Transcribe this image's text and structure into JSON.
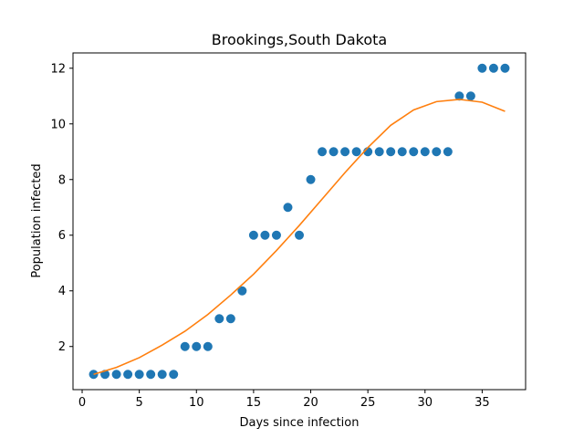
{
  "chart_data": {
    "type": "scatter",
    "title": "Brookings,South Dakota",
    "xlabel": "Days since infection",
    "ylabel": "Population infected",
    "xlim": [
      -0.8,
      38.8
    ],
    "ylim": [
      0.45,
      12.55
    ],
    "xticks": [
      0,
      5,
      10,
      15,
      20,
      25,
      30,
      35
    ],
    "yticks": [
      2,
      4,
      6,
      8,
      10,
      12
    ],
    "grid": false,
    "legend": "none",
    "series": [
      {
        "type": "scatter",
        "color": "#1f77b4",
        "x": [
          1,
          2,
          3,
          4,
          5,
          6,
          7,
          8,
          9,
          10,
          11,
          12,
          13,
          14,
          15,
          16,
          17,
          18,
          19,
          20,
          21,
          22,
          23,
          24,
          25,
          26,
          27,
          28,
          29,
          30,
          31,
          32,
          33,
          34,
          35,
          36,
          37
        ],
        "y": [
          1,
          1,
          1,
          1,
          1,
          1,
          1,
          1,
          2,
          2,
          2,
          3,
          3,
          4,
          6,
          6,
          6,
          7,
          6,
          8,
          9,
          9,
          9,
          9,
          9,
          9,
          9,
          9,
          9,
          9,
          9,
          9,
          11,
          11,
          12,
          12,
          12
        ]
      },
      {
        "type": "line",
        "color": "#ff7f0e",
        "x": [
          1,
          3,
          5,
          7,
          9,
          11,
          13,
          15,
          17,
          19,
          21,
          23,
          25,
          27,
          29,
          31,
          33,
          35,
          37
        ],
        "y": [
          1.0,
          1.25,
          1.6,
          2.05,
          2.55,
          3.15,
          3.85,
          4.6,
          5.45,
          6.35,
          7.3,
          8.25,
          9.15,
          9.95,
          10.5,
          10.8,
          10.88,
          10.78,
          10.45
        ]
      }
    ]
  }
}
